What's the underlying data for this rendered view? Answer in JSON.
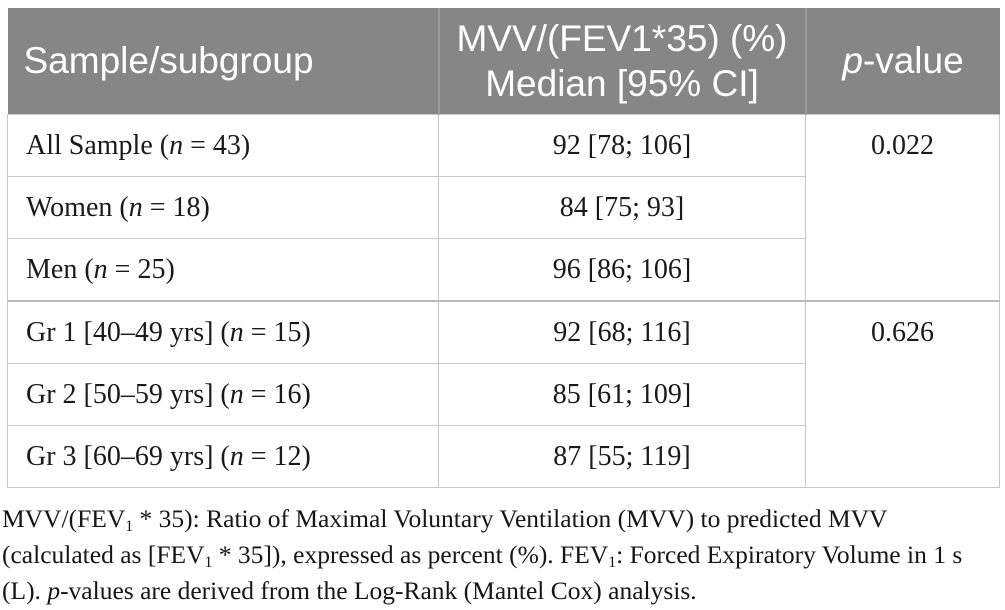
{
  "table": {
    "header": {
      "col1": "Sample/subgroup",
      "col2_line1": "MVV/(FEV1*35) (%)",
      "col2_line2": "Median [95% CI]",
      "col3_italic": "p",
      "col3_rest": "-value"
    },
    "groups": [
      {
        "p_value": "0.022",
        "rows": [
          {
            "pre": "All Sample (",
            "n": "n",
            "post": " = 43)",
            "value": "92 [78; 106]"
          },
          {
            "pre": "Women (",
            "n": "n",
            "post": " = 18)",
            "value": "84 [75; 93]"
          },
          {
            "pre": "Men (",
            "n": "n",
            "post": " = 25)",
            "value": "96 [86; 106]"
          }
        ]
      },
      {
        "p_value": "0.626",
        "rows": [
          {
            "pre": "Gr 1 [40–49 yrs] (",
            "n": "n",
            "post": " = 15)",
            "value": "92 [68; 116]"
          },
          {
            "pre": "Gr 2 [50–59 yrs] (",
            "n": "n",
            "post": " = 16)",
            "value": "85 [61; 109]"
          },
          {
            "pre": "Gr 3 [60–69 yrs] (",
            "n": "n",
            "post": " = 12)",
            "value": "87 [55; 119]"
          }
        ]
      }
    ]
  },
  "footnote": {
    "s1": "MVV/(FEV",
    "s2": "1",
    "s3": " * 35): Ratio of Maximal Voluntary Ventilation (MVV) to predicted MVV (calculated as [FEV",
    "s4": "1",
    "s5": " * 35]), expressed as percent (%). FEV",
    "s6": "1",
    "s7": ": Forced Expiratory Volume in 1 s (L). ",
    "s8": "p",
    "s9": "-values are derived from the Log-Rank (Mantel Cox) analysis."
  },
  "colors": {
    "header_bg": "#868686",
    "header_text": "#ffffff",
    "body_border": "#c8c8c8",
    "group_border": "#b9b9b9",
    "body_text": "#1a1a1a"
  }
}
